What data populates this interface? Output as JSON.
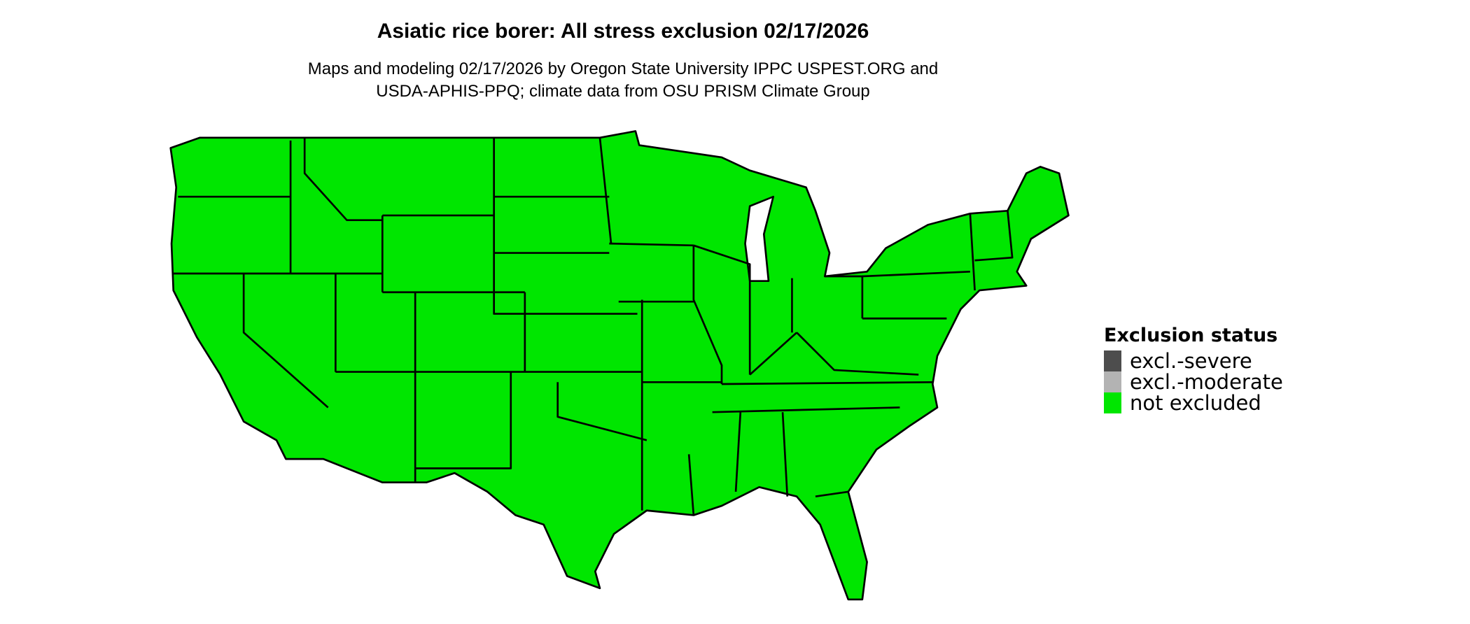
{
  "title": "Asiatic rice borer: All stress exclusion 02/17/2026",
  "subtitle_lines": [
    "Maps and modeling 02/17/2026 by Oregon State University IPPC USPEST.ORG and",
    "USDA-APHIS-PPQ; climate data from OSU PRISM Climate Group"
  ],
  "map": {
    "region": "Contiguous United States with state boundaries",
    "fill_color": "#00e600",
    "boundary_color": "#000000",
    "status_shown": "not excluded"
  },
  "legend": {
    "title": "Exclusion status",
    "items": [
      {
        "label": "excl.-severe",
        "color": "#4d4d4d"
      },
      {
        "label": "excl.-moderate",
        "color": "#b3b3b3"
      },
      {
        "label": "not excluded",
        "color": "#00e600"
      }
    ]
  }
}
